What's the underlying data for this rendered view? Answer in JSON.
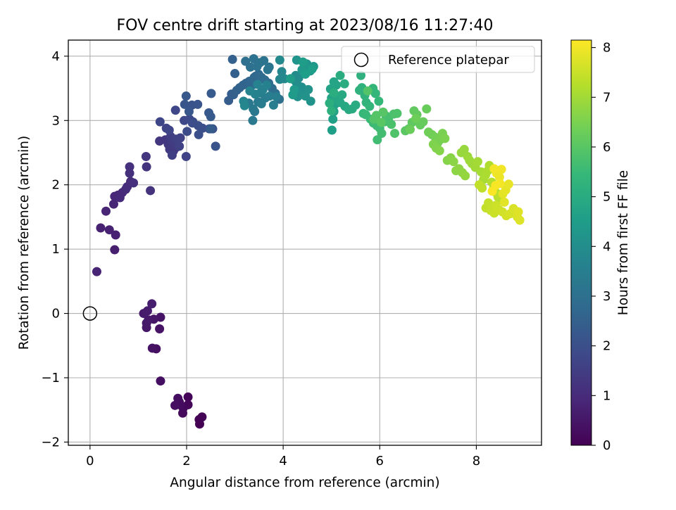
{
  "chart_data": {
    "type": "scatter",
    "title": "FOV centre drift starting at 2023/08/16 11:27:40",
    "xlabel": "Angular distance from reference (arcmin)",
    "ylabel": "Rotation from reference (arcmin)",
    "xlim": [
      -0.45,
      9.35
    ],
    "ylim": [
      -2.05,
      4.25
    ],
    "xticks": [
      0,
      2,
      4,
      6,
      8
    ],
    "yticks": [
      -2,
      -1,
      0,
      1,
      2,
      3,
      4
    ],
    "xtick_labels": [
      "0",
      "2",
      "4",
      "6",
      "8"
    ],
    "ytick_labels": [
      "−2",
      "−1",
      "0",
      "1",
      "2",
      "3",
      "4"
    ],
    "grid": true,
    "legend": {
      "position": "top-right",
      "entries": [
        "Reference platepar"
      ]
    },
    "colorbar": {
      "label": "Hours from first FF file",
      "range": [
        0,
        8.15
      ],
      "ticks": [
        0,
        1,
        2,
        3,
        4,
        5,
        6,
        7,
        8
      ],
      "tick_labels": [
        "0",
        "1",
        "2",
        "3",
        "4",
        "5",
        "6",
        "7",
        "8"
      ],
      "colormap": "viridis",
      "colors": [
        "#440154",
        "#482878",
        "#3e4989",
        "#31688e",
        "#26828e",
        "#1f9e89",
        "#35b779",
        "#6ece58",
        "#b5de2b",
        "#fde725"
      ]
    },
    "reference_point": {
      "x": 0,
      "y": 0,
      "name": "Reference platepar"
    },
    "series": [
      {
        "points": [
          [
            2.27,
            -1.72
          ],
          [
            2.26,
            -1.65
          ],
          [
            2.32,
            -1.61
          ],
          [
            2.03,
            -1.3
          ],
          [
            2.03,
            -1.42
          ],
          [
            1.93,
            -1.47
          ],
          [
            1.85,
            -1.38
          ],
          [
            1.92,
            -1.55
          ],
          [
            1.86,
            -1.42
          ],
          [
            1.82,
            -1.32
          ],
          [
            1.76,
            -1.43
          ],
          [
            1.46,
            -1.05
          ],
          [
            1.37,
            -0.55
          ],
          [
            1.29,
            -0.54
          ],
          [
            1.44,
            -0.24
          ],
          [
            1.46,
            -0.06
          ],
          [
            1.32,
            -0.09
          ],
          [
            1.17,
            -0.22
          ],
          [
            1.17,
            -0.15
          ],
          [
            1.21,
            -0.1
          ],
          [
            1.11,
            0.0
          ],
          [
            1.19,
            0.04
          ],
          [
            1.28,
            0.15
          ],
          [
            0.51,
            0.99
          ],
          [
            0.53,
            1.22
          ],
          [
            0.4,
            1.3
          ],
          [
            0.22,
            1.33
          ],
          [
            0.14,
            0.65
          ],
          [
            0.33,
            1.59
          ],
          [
            0.49,
            1.7
          ],
          [
            0.51,
            1.82
          ],
          [
            0.58,
            1.84
          ],
          [
            0.62,
            1.8
          ],
          [
            0.67,
            1.88
          ],
          [
            0.74,
            1.93
          ],
          [
            0.77,
            1.97
          ],
          [
            0.84,
            2.05
          ],
          [
            0.9,
            2.03
          ],
          [
            0.82,
            2.18
          ],
          [
            0.82,
            2.28
          ],
          [
            1.25,
            1.91
          ],
          [
            1.17,
            2.28
          ],
          [
            1.16,
            2.44
          ],
          [
            1.44,
            2.68
          ],
          [
            1.56,
            2.7
          ],
          [
            1.62,
            2.63
          ],
          [
            1.65,
            2.55
          ],
          [
            1.73,
            2.53
          ],
          [
            1.78,
            2.58
          ],
          [
            1.71,
            2.67
          ],
          [
            1.67,
            2.75
          ],
          [
            1.7,
            2.46
          ],
          [
            1.78,
            2.71
          ],
          [
            1.87,
            2.73
          ],
          [
            1.85,
            2.6
          ],
          [
            1.99,
            2.44
          ],
          [
            1.58,
            2.88
          ],
          [
            1.64,
            2.85
          ],
          [
            1.45,
            2.98
          ],
          [
            1.77,
            3.16
          ],
          [
            1.95,
            3.0
          ],
          [
            2.06,
            3.02
          ],
          [
            2.13,
            2.98
          ],
          [
            2.01,
            2.83
          ],
          [
            2.12,
            2.96
          ],
          [
            2.24,
            2.92
          ],
          [
            2.33,
            2.88
          ],
          [
            2.25,
            2.78
          ],
          [
            2.47,
            2.87
          ],
          [
            2.54,
            2.87
          ],
          [
            2.6,
            2.6
          ],
          [
            2.11,
            3.24
          ],
          [
            2.23,
            3.25
          ],
          [
            1.96,
            3.25
          ],
          [
            2.05,
            3.14
          ],
          [
            1.99,
            3.38
          ],
          [
            2.46,
            3.12
          ],
          [
            2.5,
            3.06
          ],
          [
            2.51,
            3.42
          ],
          [
            2.5,
            2.87
          ],
          [
            2.87,
            3.31
          ],
          [
            2.93,
            3.41
          ],
          [
            2.97,
            3.4
          ],
          [
            3.0,
            3.73
          ],
          [
            2.95,
            3.95
          ],
          [
            3.04,
            3.47
          ],
          [
            3.1,
            3.51
          ],
          [
            3.17,
            3.55
          ],
          [
            3.23,
            3.58
          ],
          [
            3.3,
            3.61
          ],
          [
            3.36,
            3.55
          ],
          [
            3.4,
            3.67
          ],
          [
            3.43,
            3.69
          ],
          [
            3.49,
            3.72
          ],
          [
            3.55,
            3.67
          ],
          [
            3.62,
            3.63
          ],
          [
            3.7,
            3.58
          ],
          [
            3.77,
            3.5
          ],
          [
            3.84,
            3.42
          ],
          [
            3.92,
            3.33
          ],
          [
            3.22,
            3.92
          ],
          [
            3.32,
            3.83
          ],
          [
            3.39,
            3.96
          ],
          [
            3.46,
            3.84
          ],
          [
            3.52,
            3.9
          ],
          [
            3.6,
            3.93
          ],
          [
            3.68,
            3.79
          ],
          [
            3.71,
            3.83
          ],
          [
            3.29,
            3.27
          ],
          [
            3.38,
            3.18
          ],
          [
            3.41,
            3.14
          ],
          [
            3.37,
            3.0
          ],
          [
            3.48,
            3.29
          ],
          [
            3.55,
            3.26
          ],
          [
            3.63,
            3.35
          ],
          [
            3.72,
            3.38
          ],
          [
            3.8,
            3.24
          ],
          [
            3.86,
            3.37
          ],
          [
            3.53,
            3.43
          ],
          [
            3.58,
            3.48
          ],
          [
            3.66,
            3.55
          ],
          [
            3.47,
            3.56
          ],
          [
            3.42,
            3.41
          ],
          [
            3.31,
            3.46
          ],
          [
            3.18,
            3.3
          ],
          [
            3.2,
            3.23
          ],
          [
            3.93,
            3.64
          ],
          [
            3.97,
            3.76
          ],
          [
            4.03,
            3.65
          ],
          [
            3.93,
            3.94
          ],
          [
            4.23,
            3.63
          ],
          [
            4.26,
            3.7
          ],
          [
            4.32,
            3.66
          ],
          [
            4.28,
            3.58
          ],
          [
            4.38,
            3.52
          ],
          [
            4.41,
            3.49
          ],
          [
            4.35,
            3.4
          ],
          [
            4.3,
            3.37
          ],
          [
            4.46,
            3.38
          ],
          [
            4.52,
            3.48
          ],
          [
            4.57,
            3.3
          ],
          [
            4.28,
            3.94
          ],
          [
            4.49,
            3.88
          ],
          [
            4.47,
            3.82
          ],
          [
            4.56,
            3.77
          ],
          [
            4.63,
            3.84
          ],
          [
            4.39,
            3.79
          ],
          [
            4.23,
            3.48
          ],
          [
            4.2,
            3.4
          ],
          [
            4.15,
            3.65
          ],
          [
            4.41,
            3.91
          ],
          [
            4.46,
            3.72
          ],
          [
            4.6,
            3.8
          ],
          [
            5.01,
            2.85
          ],
          [
            5.03,
            3.02
          ],
          [
            5.05,
            3.14
          ],
          [
            5.07,
            3.25
          ],
          [
            5.0,
            3.35
          ],
          [
            4.98,
            3.49
          ],
          [
            5.1,
            3.55
          ],
          [
            5.05,
            3.6
          ],
          [
            5.12,
            3.33
          ],
          [
            5.18,
            3.28
          ],
          [
            5.22,
            3.4
          ],
          [
            5.28,
            3.22
          ],
          [
            5.36,
            3.17
          ],
          [
            5.43,
            3.18
          ],
          [
            5.5,
            3.24
          ],
          [
            5.18,
            3.7
          ],
          [
            5.27,
            3.57
          ],
          [
            5.05,
            3.43
          ],
          [
            4.96,
            3.27
          ],
          [
            5.0,
            3.15
          ],
          [
            5.61,
            3.7
          ],
          [
            5.63,
            3.51
          ],
          [
            5.58,
            3.47
          ],
          [
            5.69,
            3.39
          ],
          [
            5.72,
            3.28
          ],
          [
            5.79,
            3.22
          ],
          [
            5.86,
            3.5
          ],
          [
            5.91,
            3.42
          ],
          [
            5.98,
            3.3
          ],
          [
            5.66,
            3.11
          ],
          [
            5.71,
            3.09
          ],
          [
            5.81,
            3.02
          ],
          [
            5.87,
            2.96
          ],
          [
            5.94,
            2.92
          ],
          [
            6.0,
            2.88
          ],
          [
            5.95,
            2.7
          ],
          [
            6.04,
            2.8
          ],
          [
            6.1,
            2.98
          ],
          [
            6.13,
            3.07
          ],
          [
            6.18,
            3.01
          ],
          [
            6.24,
            2.94
          ],
          [
            6.29,
            3.1
          ],
          [
            6.36,
            3.11
          ],
          [
            6.31,
            2.8
          ],
          [
            5.75,
            3.46
          ],
          [
            5.88,
            3.02
          ],
          [
            5.93,
            3.08
          ],
          [
            6.07,
            3.13
          ],
          [
            6.03,
            2.97
          ],
          [
            6.53,
            2.84
          ],
          [
            6.6,
            2.87
          ],
          [
            6.67,
            2.97
          ],
          [
            6.71,
            3.15
          ],
          [
            6.77,
            3.09
          ],
          [
            6.84,
            2.93
          ],
          [
            6.9,
            2.98
          ],
          [
            6.97,
            3.18
          ],
          [
            6.63,
            2.86
          ],
          [
            6.75,
            3.03
          ],
          [
            7.01,
            2.82
          ],
          [
            7.08,
            2.78
          ],
          [
            7.15,
            2.74
          ],
          [
            7.2,
            2.65
          ],
          [
            7.25,
            2.7
          ],
          [
            7.3,
            2.8
          ],
          [
            7.35,
            2.72
          ],
          [
            7.11,
            2.63
          ],
          [
            7.17,
            2.57
          ],
          [
            7.24,
            2.53
          ],
          [
            7.4,
            2.38
          ],
          [
            7.47,
            2.42
          ],
          [
            7.53,
            2.36
          ],
          [
            7.58,
            2.22
          ],
          [
            7.64,
            2.25
          ],
          [
            7.71,
            2.19
          ],
          [
            7.77,
            2.14
          ],
          [
            7.69,
            2.5
          ],
          [
            7.75,
            2.55
          ],
          [
            7.82,
            2.44
          ],
          [
            7.86,
            2.38
          ],
          [
            7.91,
            2.33
          ],
          [
            7.98,
            2.27
          ],
          [
            8.03,
            2.36
          ],
          [
            8.1,
            2.2
          ],
          [
            8.15,
            2.08
          ],
          [
            8.19,
            2.15
          ],
          [
            8.24,
            2.22
          ],
          [
            8.27,
            2.3
          ],
          [
            8.32,
            2.04
          ],
          [
            8.36,
            1.95
          ],
          [
            8.42,
            1.87
          ],
          [
            8.45,
            1.81
          ],
          [
            8.51,
            1.76
          ],
          [
            8.12,
            1.95
          ],
          [
            8.06,
            2.0
          ],
          [
            8.2,
            1.64
          ],
          [
            8.25,
            1.72
          ],
          [
            8.3,
            1.6
          ],
          [
            8.37,
            1.56
          ],
          [
            8.4,
            1.68
          ],
          [
            8.46,
            1.62
          ],
          [
            8.54,
            1.58
          ],
          [
            8.62,
            1.52
          ],
          [
            8.7,
            1.55
          ],
          [
            8.77,
            1.63
          ],
          [
            8.85,
            1.5
          ],
          [
            8.9,
            1.45
          ],
          [
            8.87,
            1.58
          ],
          [
            8.58,
            1.73
          ],
          [
            8.55,
            1.86
          ],
          [
            8.61,
            1.92
          ],
          [
            8.67,
            2.01
          ],
          [
            8.48,
            2.12
          ],
          [
            8.42,
            2.18
          ],
          [
            8.52,
            2.24
          ],
          [
            8.37,
            2.25
          ],
          [
            8.49,
            2.02
          ],
          [
            8.4,
            1.99
          ],
          [
            8.33,
            1.9
          ]
        ]
      }
    ]
  }
}
